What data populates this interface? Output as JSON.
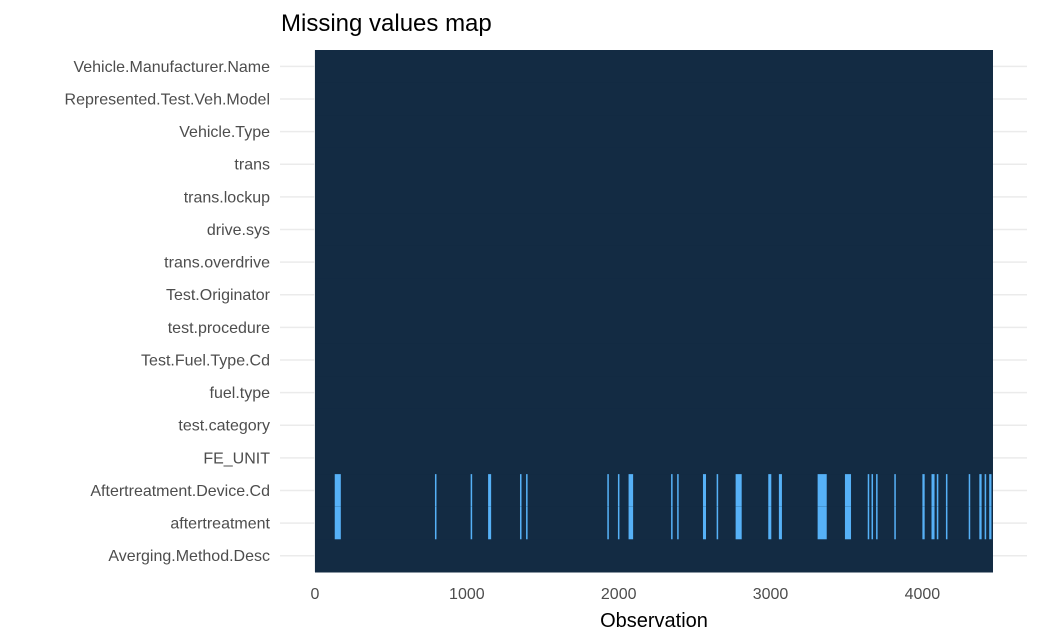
{
  "chart_data": {
    "type": "heatmap",
    "title": "Missing values map",
    "xlabel": "Observation",
    "ylabel": "",
    "xlim": [
      0,
      4465
    ],
    "x_ticks": [
      0,
      1000,
      2000,
      3000,
      4000
    ],
    "x_tick_labels": [
      "0",
      "1000",
      "2000",
      "3000",
      "4000"
    ],
    "variables": [
      "Vehicle.Manufacturer.Name",
      "Represented.Test.Veh.Model",
      "Vehicle.Type",
      "trans",
      "trans.lockup",
      "drive.sys",
      "trans.overdrive",
      "Test.Originator",
      "test.procedure",
      "Test.Fuel.Type.Cd",
      "fuel.type",
      "test.category",
      "FE_UNIT",
      "Aftertreatment.Device.Cd",
      "aftertreatment",
      "Averging.Method.Desc"
    ],
    "colors": {
      "present": "#132b43",
      "missing": "#56b1f7"
    },
    "missing": {
      "Aftertreatment.Device.Cd": [
        [
          130,
          170
        ],
        [
          790,
          800
        ],
        [
          1025,
          1035
        ],
        [
          1140,
          1160
        ],
        [
          1350,
          1360
        ],
        [
          1390,
          1400
        ],
        [
          1925,
          1935
        ],
        [
          1995,
          2005
        ],
        [
          2065,
          2095
        ],
        [
          2345,
          2355
        ],
        [
          2385,
          2395
        ],
        [
          2555,
          2575
        ],
        [
          2645,
          2655
        ],
        [
          2770,
          2810
        ],
        [
          2985,
          3005
        ],
        [
          3055,
          3075
        ],
        [
          3310,
          3370
        ],
        [
          3490,
          3530
        ],
        [
          3640,
          3650
        ],
        [
          3665,
          3675
        ],
        [
          3695,
          3705
        ],
        [
          3815,
          3825
        ],
        [
          4000,
          4015
        ],
        [
          4060,
          4080
        ],
        [
          4095,
          4105
        ],
        [
          4155,
          4165
        ],
        [
          4305,
          4315
        ],
        [
          4375,
          4390
        ],
        [
          4410,
          4420
        ],
        [
          4440,
          4455
        ]
      ],
      "aftertreatment": [
        [
          130,
          170
        ],
        [
          790,
          800
        ],
        [
          1025,
          1035
        ],
        [
          1140,
          1160
        ],
        [
          1350,
          1360
        ],
        [
          1390,
          1400
        ],
        [
          1925,
          1935
        ],
        [
          1995,
          2005
        ],
        [
          2065,
          2095
        ],
        [
          2345,
          2355
        ],
        [
          2385,
          2395
        ],
        [
          2555,
          2575
        ],
        [
          2645,
          2655
        ],
        [
          2770,
          2810
        ],
        [
          2985,
          3005
        ],
        [
          3055,
          3075
        ],
        [
          3310,
          3370
        ],
        [
          3490,
          3530
        ],
        [
          3640,
          3650
        ],
        [
          3665,
          3675
        ],
        [
          3695,
          3705
        ],
        [
          3815,
          3825
        ],
        [
          4000,
          4015
        ],
        [
          4060,
          4080
        ],
        [
          4095,
          4105
        ],
        [
          4155,
          4165
        ],
        [
          4305,
          4315
        ],
        [
          4375,
          4390
        ],
        [
          4410,
          4420
        ],
        [
          4440,
          4455
        ]
      ]
    }
  }
}
